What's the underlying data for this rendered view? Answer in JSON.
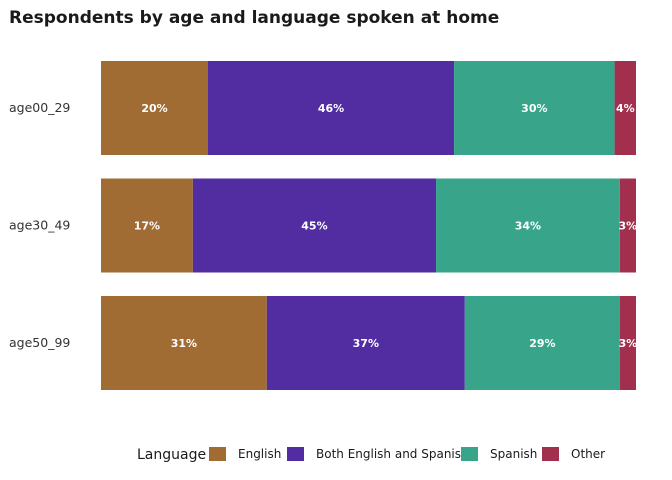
{
  "chart_data": {
    "type": "bar",
    "orientation": "horizontal",
    "stacked": true,
    "normalized": true,
    "title": "Respondents by age and language spoken at home",
    "categories": [
      "age00_29",
      "age30_49",
      "age50_99"
    ],
    "series": [
      {
        "name": "English",
        "color": "#A06C33",
        "values": [
          20,
          17,
          31
        ],
        "labels": [
          "20%",
          "17%",
          "31%"
        ]
      },
      {
        "name": "Both English and Spanish",
        "color": "#512DA1",
        "values": [
          46,
          45,
          37
        ],
        "labels": [
          "46%",
          "45%",
          "37%"
        ]
      },
      {
        "name": "Spanish",
        "color": "#38A58B",
        "values": [
          30,
          34,
          29
        ],
        "labels": [
          "30%",
          "34%",
          "29%"
        ]
      },
      {
        "name": "Other",
        "color": "#A22F4E",
        "values": [
          4,
          3,
          3
        ],
        "labels": [
          "4%",
          "3%",
          "3%"
        ]
      }
    ],
    "legend": {
      "title": "Language",
      "position": "bottom"
    },
    "grid": false
  }
}
